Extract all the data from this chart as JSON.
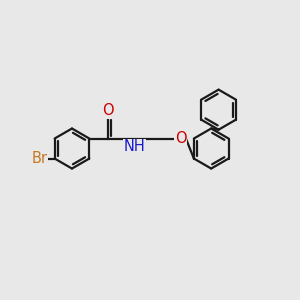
{
  "bg_color": "#e8e8e8",
  "bond_color": "#1a1a1a",
  "bond_width": 1.6,
  "atom_colors": {
    "Br": "#c87820",
    "O": "#cc0000",
    "N": "#1a1acc"
  },
  "font_size": 10.5,
  "r": 0.68
}
